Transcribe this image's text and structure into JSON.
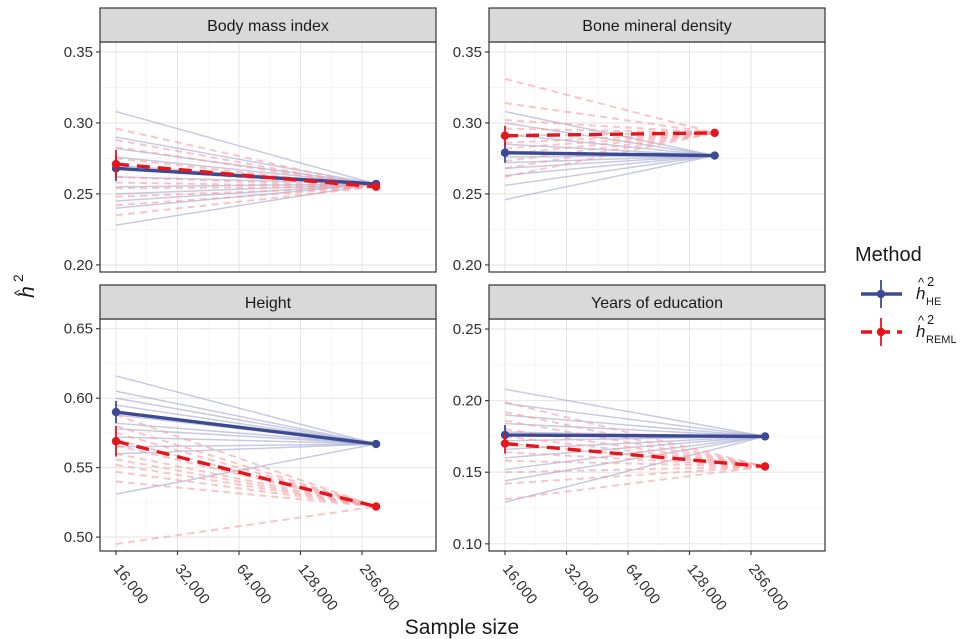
{
  "chart_data": {
    "type": "line",
    "xlabel": "Sample size",
    "ylabel": "h^2",
    "x_scale": "log2",
    "x_ticks": [
      16000,
      32000,
      64000,
      128000,
      256000
    ],
    "x_tick_labels": [
      "16,000",
      "32,000",
      "64,000",
      "128,000",
      "256,000"
    ],
    "grid": true,
    "legend": {
      "title": "Method",
      "placement": "right",
      "entries": [
        {
          "key": "HE",
          "symbol": "h",
          "sub": "HE",
          "sup": "2",
          "color": "#3c4a94",
          "dash": "solid"
        },
        {
          "key": "REML",
          "symbol": "h",
          "sub": "REML",
          "sup": "2",
          "color": "#e8141c",
          "dash": "dashed"
        }
      ]
    },
    "panels": [
      {
        "title": "Body mass index",
        "ylim": [
          0.195,
          0.357
        ],
        "y_ticks": [
          0.2,
          0.25,
          0.3,
          0.35
        ],
        "y_tick_labels": [
          "0.20",
          "0.25",
          "0.30",
          "0.35"
        ],
        "x": [
          16000,
          300000
        ],
        "series": [
          {
            "method": "HE",
            "values": [
              0.268,
              0.257
            ],
            "err": [
              0.009,
              0
            ]
          },
          {
            "method": "REML",
            "values": [
              0.271,
              0.255
            ],
            "err": [
              0.01,
              0
            ]
          }
        ],
        "replicates": {
          "HE": [
            0.308,
            0.29,
            0.282,
            0.276,
            0.27,
            0.262,
            0.255,
            0.25,
            0.245,
            0.24,
            0.228
          ],
          "REML": [
            0.296,
            0.288,
            0.283,
            0.275,
            0.268,
            0.262,
            0.258,
            0.254,
            0.248,
            0.242,
            0.235
          ]
        }
      },
      {
        "title": "Bone mineral density",
        "ylim": [
          0.195,
          0.357
        ],
        "y_ticks": [
          0.2,
          0.25,
          0.3,
          0.35
        ],
        "y_tick_labels": [
          "0.20",
          "0.25",
          "0.30",
          "0.35"
        ],
        "x": [
          16000,
          170000
        ],
        "series": [
          {
            "method": "HE",
            "values": [
              0.279,
              0.277
            ],
            "err": [
              0.007,
              0
            ]
          },
          {
            "method": "REML",
            "values": [
              0.291,
              0.293
            ],
            "err": [
              0.007,
              0
            ]
          }
        ],
        "replicates": {
          "HE": [
            0.308,
            0.3,
            0.292,
            0.285,
            0.28,
            0.276,
            0.272,
            0.268,
            0.263,
            0.256,
            0.246
          ],
          "REML": [
            0.331,
            0.314,
            0.302,
            0.296,
            0.291,
            0.286,
            0.282,
            0.278,
            0.273,
            0.268,
            0.262
          ]
        }
      },
      {
        "title": "Height",
        "ylim": [
          0.49,
          0.657
        ],
        "y_ticks": [
          0.5,
          0.55,
          0.6,
          0.65
        ],
        "y_tick_labels": [
          "0.50",
          "0.55",
          "0.60",
          "0.65"
        ],
        "x": [
          16000,
          300000
        ],
        "series": [
          {
            "method": "HE",
            "values": [
              0.59,
              0.567
            ],
            "err": [
              0.008,
              0
            ]
          },
          {
            "method": "REML",
            "values": [
              0.569,
              0.522
            ],
            "err": [
              0.011,
              0
            ]
          }
        ],
        "replicates": {
          "HE": [
            0.616,
            0.605,
            0.6,
            0.595,
            0.588,
            0.582,
            0.578,
            0.572,
            0.565,
            0.56,
            0.531
          ],
          "REML": [
            0.588,
            0.58,
            0.575,
            0.57,
            0.566,
            0.56,
            0.556,
            0.552,
            0.547,
            0.54,
            0.495
          ]
        }
      },
      {
        "title": "Years of education",
        "ylim": [
          0.095,
          0.257
        ],
        "y_ticks": [
          0.1,
          0.15,
          0.2,
          0.25
        ],
        "y_tick_labels": [
          "0.10",
          "0.15",
          "0.20",
          "0.25"
        ],
        "x": [
          16000,
          300000
        ],
        "series": [
          {
            "method": "HE",
            "values": [
              0.176,
              0.175
            ],
            "err": [
              0.007,
              0
            ]
          },
          {
            "method": "REML",
            "values": [
              0.17,
              0.154
            ],
            "err": [
              0.007,
              0
            ]
          }
        ],
        "replicates": {
          "HE": [
            0.208,
            0.198,
            0.19,
            0.184,
            0.178,
            0.172,
            0.166,
            0.16,
            0.152,
            0.144,
            0.129
          ],
          "REML": [
            0.199,
            0.192,
            0.186,
            0.18,
            0.175,
            0.17,
            0.164,
            0.158,
            0.15,
            0.142,
            0.131
          ]
        }
      }
    ]
  }
}
